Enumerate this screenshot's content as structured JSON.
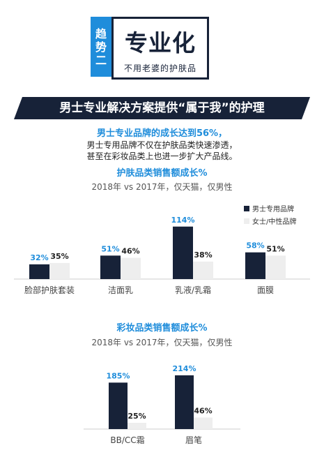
{
  "header": {
    "tag": [
      "趋势",
      "二"
    ],
    "title": "专业化",
    "subtitle": "不用老婆的护肤品"
  },
  "banner": {
    "text": "男士专业解决方案提供“属于我”的护理"
  },
  "summary": {
    "headline": "男士专业品牌的成长达到56%，",
    "line1": "男士专用品牌不仅在护肤品类快速渗透，",
    "line2": "甚至在彩妆品类上也进一步扩大产品线。"
  },
  "colors": {
    "accent": "#1f8ddb",
    "navy": "#172238",
    "light": "#eeeeee"
  },
  "chart_data": [
    {
      "type": "bar",
      "title": "护肤品类销售额成长%",
      "subtitle": "2018年 vs 2017年，仅天猫，仅男性",
      "categories": [
        "脸部护肤套装",
        "洁面乳",
        "乳液/乳霜",
        "面膜"
      ],
      "series": [
        {
          "name": "男士专用品牌",
          "values": [
            32,
            51,
            114,
            58
          ],
          "labels": [
            "32%",
            "51%",
            "114%",
            "58%"
          ]
        },
        {
          "name": "女士/中性品牌",
          "values": [
            35,
            46,
            38,
            51
          ],
          "labels": [
            "35%",
            "46%",
            "38%",
            "51%"
          ]
        }
      ],
      "legend": "top-right"
    },
    {
      "type": "bar",
      "title": "彩妆品类销售额成长%",
      "subtitle": "2018年 vs 2017年，仅天猫，仅男性",
      "categories": [
        "BB/CC霜",
        "眉笔"
      ],
      "series": [
        {
          "name": "男士专用品牌",
          "values": [
            185,
            214
          ],
          "labels": [
            "185%",
            "214%"
          ]
        },
        {
          "name": "女士/中性品牌",
          "values": [
            25,
            46
          ],
          "labels": [
            "25%",
            "46%"
          ]
        }
      ]
    }
  ]
}
